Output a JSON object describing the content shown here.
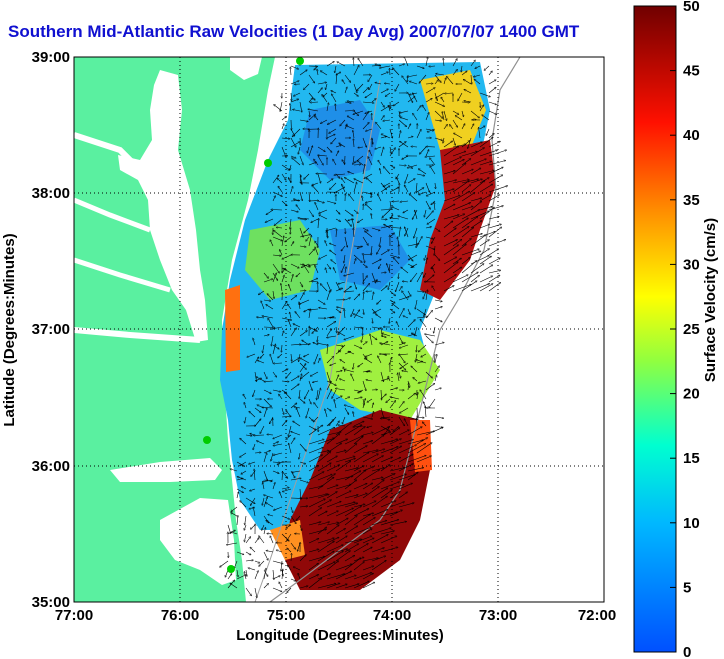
{
  "title": "Southern Mid-Atlantic Raw Velocities (1 Day Avg) 2007/07/07 1400 GMT",
  "xaxis": {
    "label": "Longitude (Degrees:Minutes)",
    "ticks": [
      "77:00",
      "76:00",
      "75:00",
      "74:00",
      "73:00",
      "72:00"
    ]
  },
  "yaxis": {
    "label": "Latitude (Degrees:Minutes)",
    "ticks": [
      "39:00",
      "38:00",
      "37:00",
      "36:00",
      "35:00"
    ]
  },
  "colorbar": {
    "label": "Surface Velocity (cm/s)",
    "ticks": [
      "50",
      "45",
      "40",
      "35",
      "30",
      "25",
      "20",
      "15",
      "10",
      "5",
      "0"
    ],
    "min": 0,
    "max": 50,
    "colormap": [
      "#0000ff",
      "#00ffff",
      "#ffff00",
      "#ff0000",
      "#800000"
    ]
  },
  "map": {
    "lon_range": [
      -77,
      -72
    ],
    "lat_range": [
      35,
      39
    ],
    "land_color": "#5af0a0",
    "water_color": "#ffffff",
    "grid": "dotted",
    "station_color": "#00cc00"
  }
}
